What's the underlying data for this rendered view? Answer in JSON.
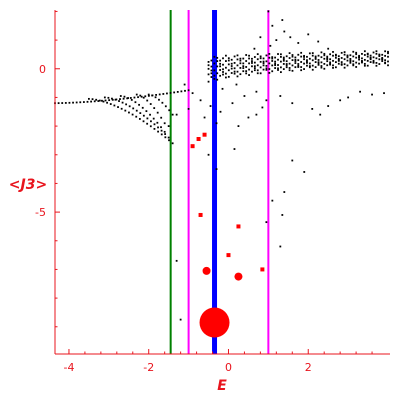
{
  "colors": {
    "axis": "#e8141d",
    "points": "#000000",
    "red_markers": "#ff0000",
    "green_line": "#008000",
    "magenta_line": "#ff00ff",
    "blue_line": "#0000ff"
  },
  "chart_data": {
    "type": "scatter",
    "xlabel": "E",
    "ylabel": "<J3>",
    "xlim": [
      -4.35,
      4.05
    ],
    "ylim": [
      -9.95,
      2.05
    ],
    "x_ticks": [
      -4,
      -2,
      0,
      2
    ],
    "y_ticks": [
      0,
      -5
    ],
    "x_tick_labels": [
      "-4",
      "-2",
      "0",
      "2"
    ],
    "y_tick_labels": [
      "0",
      "-5"
    ],
    "grid": false,
    "vertical_lines": [
      {
        "x": -1.45,
        "color": "green"
      },
      {
        "x": -1.0,
        "color": "magenta"
      },
      {
        "x": 1.0,
        "color": "magenta"
      },
      {
        "x": -0.35,
        "color": "blue"
      }
    ],
    "red_markers": [
      {
        "x": -0.35,
        "y": -8.85,
        "size": "large"
      },
      {
        "x": -0.55,
        "y": -7.05,
        "size": "medium"
      },
      {
        "x": 0.25,
        "y": -7.25,
        "size": "medium"
      },
      {
        "x": -0.6,
        "y": -2.3,
        "size": "small"
      },
      {
        "x": -0.75,
        "y": -2.45,
        "size": "small"
      },
      {
        "x": -0.9,
        "y": -2.7,
        "size": "small"
      },
      {
        "x": -0.7,
        "y": -5.1,
        "size": "small"
      },
      {
        "x": 0.25,
        "y": -5.5,
        "size": "small"
      },
      {
        "x": 0.0,
        "y": -6.5,
        "size": "small"
      },
      {
        "x": 0.85,
        "y": -7.0,
        "size": "small"
      }
    ],
    "arc_branches": [
      {
        "x_start": -4.35,
        "x_end": -1.0,
        "y_start": -1.2,
        "y_end": -0.75
      },
      {
        "x_start": -3.5,
        "x_end": -1.4,
        "y_start": -1.05,
        "y_end": -2.6
      },
      {
        "x_start": -3.1,
        "x_end": -1.5,
        "y_start": -1.0,
        "y_end": -2.4
      },
      {
        "x_start": -2.7,
        "x_end": -1.6,
        "y_start": -0.95,
        "y_end": -2.2
      },
      {
        "x_start": -2.3,
        "x_end": -1.6,
        "y_start": -0.9,
        "y_end": -1.9
      },
      {
        "x_start": -2.0,
        "x_end": -1.4,
        "y_start": -0.9,
        "y_end": -1.6
      }
    ],
    "band_region": {
      "x_start": -0.5,
      "x_end": 4.0,
      "y_low_start": -0.45,
      "y_low_end": 0.2,
      "y_high_start": 0.3,
      "y_high_end": 0.55
    },
    "scattered_points": [
      [
        -1.1,
        -0.55
      ],
      [
        -0.9,
        -0.85
      ],
      [
        -0.7,
        -1.1
      ],
      [
        -0.45,
        -1.3
      ],
      [
        -0.2,
        -1.5
      ],
      [
        0.1,
        -1.2
      ],
      [
        0.4,
        -0.95
      ],
      [
        0.7,
        -0.8
      ],
      [
        0.95,
        -1.1
      ],
      [
        1.3,
        -0.95
      ],
      [
        1.6,
        -1.2
      ],
      [
        2.1,
        -1.4
      ],
      [
        2.5,
        -1.3
      ],
      [
        2.8,
        -1.1
      ],
      [
        3.3,
        -0.8
      ],
      [
        3.6,
        -0.9
      ],
      [
        3.9,
        -0.85
      ],
      [
        -0.6,
        -1.7
      ],
      [
        -0.3,
        -1.9
      ],
      [
        0.25,
        -2.0
      ],
      [
        -1.5,
        -2.0
      ],
      [
        -1.3,
        -1.6
      ],
      [
        -1.0,
        -1.4
      ],
      [
        0.5,
        -1.7
      ],
      [
        1.6,
        -3.2
      ],
      [
        1.9,
        -3.6
      ],
      [
        1.4,
        -4.3
      ],
      [
        1.1,
        -4.6
      ],
      [
        0.95,
        -5.35
      ],
      [
        1.3,
        -6.2
      ],
      [
        1.35,
        -5.1
      ],
      [
        -1.3,
        -6.7
      ],
      [
        -1.2,
        -8.75
      ],
      [
        -0.3,
        -3.5
      ],
      [
        0.15,
        -2.8
      ],
      [
        -0.5,
        -3.0
      ],
      [
        0.7,
        -1.6
      ],
      [
        0.85,
        -1.35
      ],
      [
        2.3,
        -1.6
      ],
      [
        3.0,
        -1.0
      ],
      [
        -0.15,
        -0.7
      ],
      [
        0.2,
        -0.55
      ],
      [
        1.05,
        0.8
      ],
      [
        1.2,
        1.0
      ],
      [
        1.4,
        1.3
      ],
      [
        1.1,
        1.5
      ],
      [
        1.35,
        1.7
      ],
      [
        1.55,
        1.1
      ],
      [
        1.75,
        0.9
      ],
      [
        2.0,
        1.2
      ],
      [
        2.25,
        0.95
      ],
      [
        1.0,
        2.0
      ],
      [
        0.8,
        1.1
      ],
      [
        0.65,
        0.7
      ],
      [
        2.5,
        0.7
      ]
    ]
  }
}
